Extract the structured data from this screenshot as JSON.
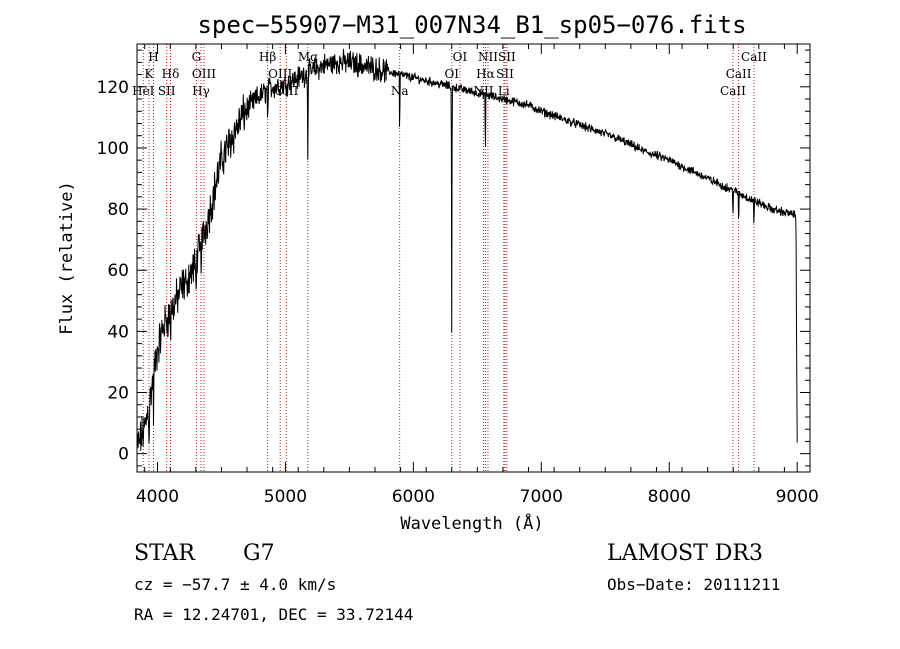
{
  "chart_data": {
    "type": "line",
    "title": "spec−55907−M31_007N34_B1_sp05−076.fits",
    "xlabel": "Wavelength (Å)",
    "ylabel": "Flux (relative)",
    "xlim": [
      3840,
      9100
    ],
    "ylim": [
      -6,
      134
    ],
    "xticks": [
      4000,
      5000,
      6000,
      7000,
      8000,
      9000
    ],
    "yticks": [
      0,
      20,
      40,
      60,
      80,
      100,
      120
    ],
    "continuum": {
      "x": [
        3840,
        3900,
        3950,
        4000,
        4050,
        4100,
        4200,
        4300,
        4400,
        4500,
        4600,
        4700,
        4800,
        4900,
        5000,
        5100,
        5200,
        5300,
        5400,
        5500,
        5600,
        5700,
        5800,
        5900,
        6000,
        6100,
        6200,
        6300,
        6400,
        6500,
        6600,
        6700,
        6800,
        6900,
        7000,
        7200,
        7400,
        7600,
        7800,
        8000,
        8200,
        8400,
        8600,
        8800,
        8990,
        9000
      ],
      "y": [
        2,
        8,
        20,
        34,
        42,
        46,
        55,
        62,
        78,
        96,
        105,
        113,
        117,
        120,
        121,
        123,
        125,
        127,
        128,
        128,
        127,
        126,
        125,
        124,
        123,
        122,
        121,
        120,
        119,
        118,
        117,
        116,
        115,
        114,
        112,
        109,
        106,
        103,
        99,
        96,
        92,
        88,
        84,
        80,
        78,
        4
      ]
    },
    "absorption_lines": [
      {
        "x": 3934,
        "depth": 15
      },
      {
        "x": 3969,
        "depth": 12
      },
      {
        "x": 4102,
        "depth": 10
      },
      {
        "x": 4227,
        "depth": 6
      },
      {
        "x": 4300,
        "depth": 10
      },
      {
        "x": 4340,
        "depth": 8
      },
      {
        "x": 4861,
        "depth": 14
      },
      {
        "x": 5175,
        "depth": 28
      },
      {
        "x": 5893,
        "depth": 22
      },
      {
        "x": 6300,
        "depth": 80
      },
      {
        "x": 6563,
        "depth": 22
      },
      {
        "x": 8498,
        "depth": 8
      },
      {
        "x": 8542,
        "depth": 12
      },
      {
        "x": 8662,
        "depth": 10
      }
    ],
    "line_markers": [
      {
        "x": 3889,
        "label": "HeI",
        "row": 3
      },
      {
        "x": 3934,
        "label": "K",
        "row": 2
      },
      {
        "x": 3969,
        "label": "H",
        "row": 1
      },
      {
        "x": 4072,
        "label": "SII",
        "row": 3
      },
      {
        "x": 4102,
        "label": "Hδ",
        "row": 2
      },
      {
        "x": 4304,
        "label": "G",
        "row": 1
      },
      {
        "x": 4340,
        "label": "Hγ",
        "row": 3
      },
      {
        "x": 4363,
        "label": "OIII",
        "row": 2
      },
      {
        "x": 4861,
        "label": "Hβ",
        "row": 1
      },
      {
        "x": 4959,
        "label": "OIII",
        "row": 2
      },
      {
        "x": 5007,
        "label": "OIII",
        "row": 3
      },
      {
        "x": 5175,
        "label": "Mg",
        "row": 1
      },
      {
        "x": 5893,
        "label": "Na",
        "row": 3
      },
      {
        "x": 6300,
        "label": "OI",
        "row": 2
      },
      {
        "x": 6364,
        "label": "OI",
        "row": 1
      },
      {
        "x": 6548,
        "label": "NII",
        "row": 3
      },
      {
        "x": 6563,
        "label": "Hα",
        "row": 2
      },
      {
        "x": 6583,
        "label": "NII",
        "row": 1
      },
      {
        "x": 6707,
        "label": "Li",
        "row": 3
      },
      {
        "x": 6716,
        "label": "SII",
        "row": 2
      },
      {
        "x": 6731,
        "label": "SII",
        "row": 1
      },
      {
        "x": 8498,
        "label": "CaII",
        "row": 3
      },
      {
        "x": 8542,
        "label": "CaII",
        "row": 2
      },
      {
        "x": 8662,
        "label": "CaII",
        "row": 1
      }
    ],
    "colors": {
      "line": "#000000",
      "marker": "#b22222"
    }
  },
  "info": {
    "object_class": "STAR",
    "subclass": "G7",
    "survey": "LAMOST DR3",
    "cz": "cz = −57.7 ± 4.0 km/s",
    "obs_date": "Obs−Date: 20111211",
    "coords": "RA =  12.24701, DEC =  33.72144"
  }
}
